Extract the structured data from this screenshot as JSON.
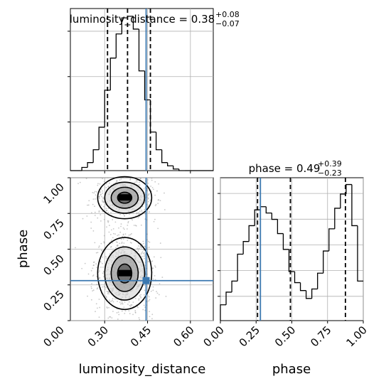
{
  "colors": {
    "truth": "#3b78b0",
    "hist": "#000000",
    "grid": "#b0b0b0",
    "scatter": "#9a9a9a"
  },
  "chart_data": [
    {
      "type": "histogram",
      "parameter": "luminosity_distance",
      "title": {
        "main": "luminosity_distance = 0.38",
        "sup": "+0.08",
        "sub": "−0.07"
      },
      "xlim": [
        0.18,
        0.68
      ],
      "truth": 0.445,
      "quantiles": [
        0.31,
        0.38,
        0.46
      ],
      "bins": [
        0.18,
        0.2,
        0.22,
        0.24,
        0.26,
        0.28,
        0.3,
        0.32,
        0.34,
        0.36,
        0.38,
        0.4,
        0.42,
        0.44,
        0.46,
        0.48,
        0.5,
        0.52,
        0.54,
        0.56,
        0.58,
        0.6,
        0.62,
        0.64,
        0.66,
        0.68
      ],
      "counts": [
        0,
        0,
        0.02,
        0.05,
        0.13,
        0.27,
        0.5,
        0.7,
        0.85,
        0.95,
        0.96,
        0.88,
        0.62,
        0.44,
        0.24,
        0.13,
        0.05,
        0.03,
        0.01,
        0,
        0,
        0,
        0,
        0,
        0
      ],
      "grid": true
    },
    {
      "type": "histogram",
      "parameter": "phase",
      "title": {
        "main": "phase = 0.49",
        "sup": "+0.39",
        "sub": "−0.23"
      },
      "xlim": [
        0,
        1
      ],
      "xticks": [
        "0.00",
        "0.25",
        "0.50",
        "0.75",
        "1.00"
      ],
      "xlabel": "phase",
      "truth": 0.28,
      "quantiles": [
        0.26,
        0.49,
        0.875
      ],
      "bins": [
        0,
        0.04,
        0.08,
        0.12,
        0.16,
        0.2,
        0.24,
        0.28,
        0.32,
        0.36,
        0.4,
        0.44,
        0.48,
        0.52,
        0.56,
        0.6,
        0.64,
        0.68,
        0.72,
        0.76,
        0.8,
        0.84,
        0.88,
        0.92,
        0.96,
        1.0
      ],
      "counts": [
        0.1,
        0.18,
        0.25,
        0.42,
        0.5,
        0.6,
        0.7,
        0.72,
        0.68,
        0.64,
        0.55,
        0.45,
        0.31,
        0.24,
        0.19,
        0.14,
        0.2,
        0.3,
        0.44,
        0.58,
        0.71,
        0.8,
        0.86,
        0.6,
        0.25
      ],
      "grid": true
    },
    {
      "type": "scatter",
      "subtype": "2d-density-contour",
      "x_parameter": "luminosity_distance",
      "y_parameter": "phase",
      "xlim": [
        0.18,
        0.68
      ],
      "ylim": [
        0,
        1
      ],
      "xticks": [
        "0.30",
        "0.45",
        "0.60"
      ],
      "yticks": [
        "0.00",
        "0.25",
        "0.50",
        "0.75",
        "1.00"
      ],
      "xlabel": "luminosity_distance",
      "ylabel": "phase",
      "truth": {
        "x": 0.445,
        "y": 0.28
      },
      "modes": [
        {
          "x": 0.37,
          "y": 0.86,
          "sx": 0.045,
          "sy": 0.07
        },
        {
          "x": 0.37,
          "y": 0.33,
          "sx": 0.045,
          "sy": 0.12
        }
      ],
      "contour_levels": 4,
      "grid": true
    }
  ]
}
